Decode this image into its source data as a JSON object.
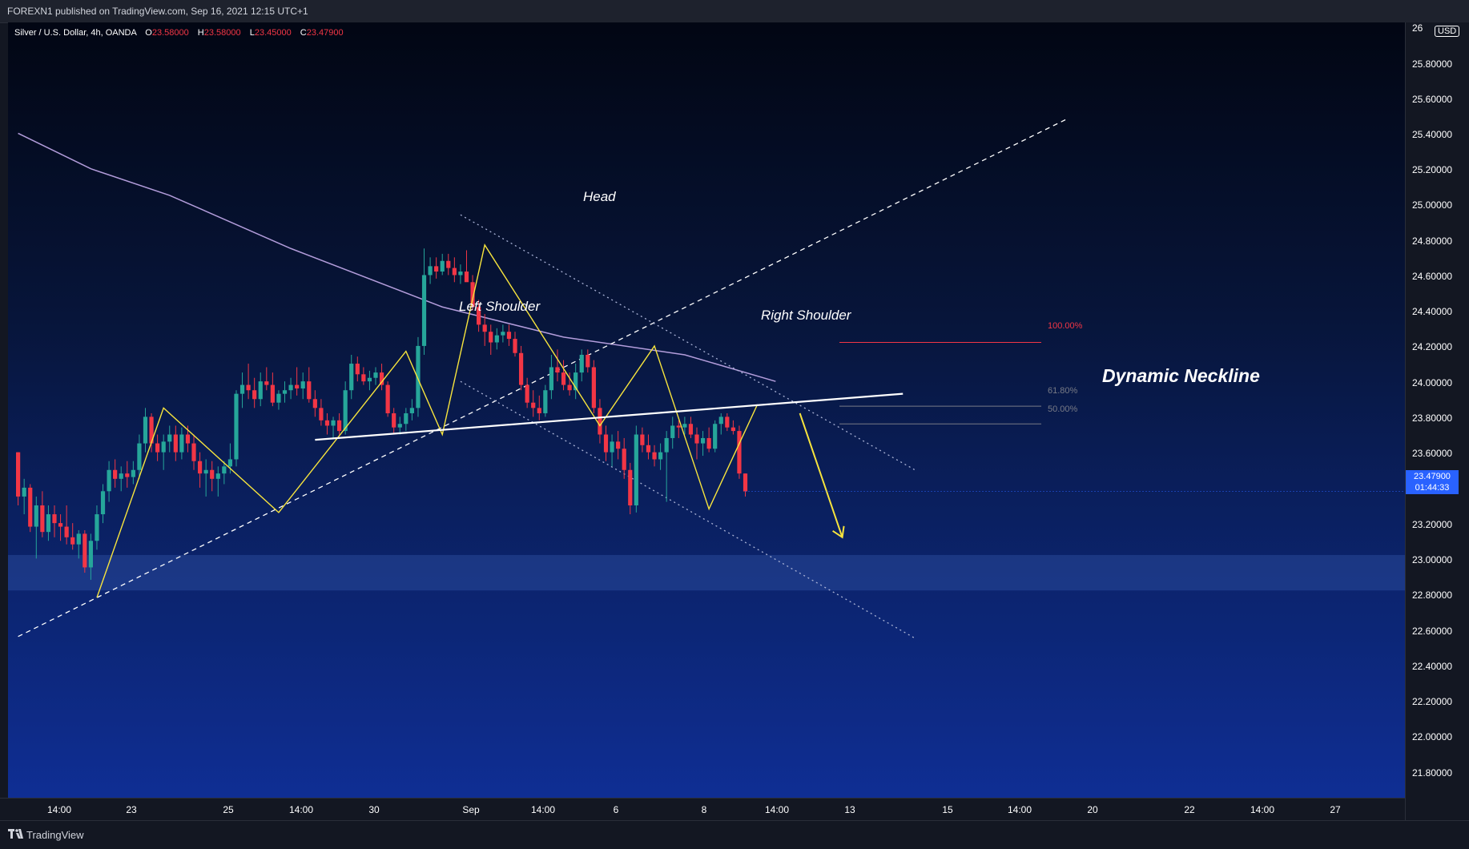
{
  "header": {
    "publisher": "FOREXN1 published on TradingView.com, Sep 16, 2021 12:15 UTC+1"
  },
  "legend": {
    "symbol": "Silver / U.S. Dollar, 4h, OANDA",
    "open_label": "O",
    "open": "23.58000",
    "high_label": "H",
    "high": "23.58000",
    "low_label": "L",
    "low": "23.45000",
    "close_label": "C",
    "close": "23.47900"
  },
  "price_axis": {
    "currency": "USD",
    "top_partial": "26",
    "ticks": [
      "25.80000",
      "25.60000",
      "25.40000",
      "25.20000",
      "25.00000",
      "24.80000",
      "24.60000",
      "24.40000",
      "24.20000",
      "24.00000",
      "23.80000",
      "23.60000",
      "23.20000",
      "23.00000",
      "22.80000",
      "22.60000",
      "22.40000",
      "22.20000",
      "22.00000",
      "21.80000"
    ],
    "last_price": "23.47900",
    "countdown": "01:44:33"
  },
  "time_axis": {
    "ticks": [
      "14:00",
      "23",
      "25",
      "14:00",
      "30",
      "Sep",
      "14:00",
      "6",
      "8",
      "14:00",
      "13",
      "15",
      "14:00",
      "20",
      "22",
      "14:00",
      "27"
    ]
  },
  "annotations": {
    "head": "Head",
    "left_shoulder": "Left Shoulder",
    "right_shoulder": "Right Shoulder",
    "neckline": "Dynamic Neckline"
  },
  "fibonacci": [
    {
      "label": "100.00%",
      "price": 24.32,
      "color": "#f23645"
    },
    {
      "label": "61.80%",
      "price": 23.96,
      "color": "#787b86"
    },
    {
      "label": "50.00%",
      "price": 23.86,
      "color": "#787b86"
    }
  ],
  "support_zone": {
    "from": 22.92,
    "to": 23.12
  },
  "footer": {
    "brand": "TradingView"
  },
  "colors": {
    "bull": "#26a69a",
    "bear": "#f23645",
    "moving_average": "#b39ddb",
    "zigzag": "#f7e43d",
    "neckline": "#ffffff",
    "badge": "#2962ff"
  },
  "chart_data": {
    "type": "candlestick",
    "symbol": "Silver / U.S. Dollar",
    "interval": "4h",
    "ylim": [
      21.7,
      26.0
    ],
    "candles": [
      [
        23.7,
        23.7,
        23.4,
        23.45
      ],
      [
        23.45,
        23.55,
        23.35,
        23.5
      ],
      [
        23.5,
        23.52,
        23.25,
        23.28
      ],
      [
        23.28,
        23.45,
        23.1,
        23.4
      ],
      [
        23.4,
        23.48,
        23.22,
        23.25
      ],
      [
        23.25,
        23.4,
        23.2,
        23.35
      ],
      [
        23.35,
        23.4,
        23.22,
        23.3
      ],
      [
        23.3,
        23.35,
        23.2,
        23.28
      ],
      [
        23.28,
        23.4,
        23.18,
        23.22
      ],
      [
        23.22,
        23.3,
        23.15,
        23.18
      ],
      [
        23.18,
        23.26,
        23.1,
        23.24
      ],
      [
        23.24,
        23.26,
        23.02,
        23.05
      ],
      [
        23.05,
        23.24,
        22.98,
        23.2
      ],
      [
        23.2,
        23.4,
        23.15,
        23.35
      ],
      [
        23.35,
        23.52,
        23.3,
        23.48
      ],
      [
        23.48,
        23.65,
        23.42,
        23.6
      ],
      [
        23.6,
        23.66,
        23.5,
        23.55
      ],
      [
        23.55,
        23.62,
        23.48,
        23.58
      ],
      [
        23.58,
        23.65,
        23.5,
        23.56
      ],
      [
        23.56,
        23.65,
        23.52,
        23.6
      ],
      [
        23.6,
        23.8,
        23.55,
        23.75
      ],
      [
        23.75,
        23.95,
        23.7,
        23.9
      ],
      [
        23.9,
        23.92,
        23.7,
        23.75
      ],
      [
        23.75,
        23.8,
        23.65,
        23.7
      ],
      [
        23.7,
        23.8,
        23.6,
        23.76
      ],
      [
        23.76,
        23.85,
        23.7,
        23.8
      ],
      [
        23.8,
        23.85,
        23.65,
        23.7
      ],
      [
        23.7,
        23.84,
        23.66,
        23.8
      ],
      [
        23.8,
        23.85,
        23.7,
        23.75
      ],
      [
        23.75,
        23.8,
        23.6,
        23.65
      ],
      [
        23.65,
        23.7,
        23.5,
        23.58
      ],
      [
        23.58,
        23.66,
        23.45,
        23.6
      ],
      [
        23.6,
        23.65,
        23.48,
        23.55
      ],
      [
        23.55,
        23.62,
        23.45,
        23.58
      ],
      [
        23.58,
        23.65,
        23.52,
        23.62
      ],
      [
        23.62,
        23.75,
        23.58,
        23.66
      ],
      [
        23.66,
        24.05,
        23.62,
        24.03
      ],
      [
        24.03,
        24.15,
        23.95,
        24.08
      ],
      [
        24.08,
        24.2,
        24.0,
        24.05
      ],
      [
        24.05,
        24.12,
        23.95,
        24.0
      ],
      [
        24.0,
        24.15,
        23.96,
        24.1
      ],
      [
        24.1,
        24.18,
        24.05,
        24.08
      ],
      [
        24.08,
        24.15,
        23.96,
        23.98
      ],
      [
        23.98,
        24.05,
        23.94,
        24.03
      ],
      [
        24.03,
        24.1,
        23.98,
        24.05
      ],
      [
        24.05,
        24.12,
        24.0,
        24.08
      ],
      [
        24.08,
        24.18,
        24.02,
        24.06
      ],
      [
        24.06,
        24.15,
        24.0,
        24.1
      ],
      [
        24.1,
        24.18,
        23.98,
        24.0
      ],
      [
        24.0,
        24.05,
        23.9,
        23.95
      ],
      [
        23.95,
        24.0,
        23.85,
        23.88
      ],
      [
        23.88,
        23.92,
        23.8,
        23.85
      ],
      [
        23.85,
        23.9,
        23.78,
        23.88
      ],
      [
        23.88,
        23.92,
        23.8,
        23.82
      ],
      [
        23.82,
        24.1,
        23.8,
        24.05
      ],
      [
        24.05,
        24.25,
        24.0,
        24.2
      ],
      [
        24.2,
        24.24,
        24.1,
        24.14
      ],
      [
        24.14,
        24.18,
        24.08,
        24.1
      ],
      [
        24.1,
        24.16,
        24.05,
        24.12
      ],
      [
        24.12,
        24.18,
        24.08,
        24.15
      ],
      [
        24.15,
        24.2,
        24.05,
        24.08
      ],
      [
        24.08,
        24.1,
        23.9,
        23.92
      ],
      [
        23.92,
        23.95,
        23.8,
        23.84
      ],
      [
        23.84,
        23.9,
        23.8,
        23.86
      ],
      [
        23.86,
        23.95,
        23.82,
        23.92
      ],
      [
        23.92,
        24.0,
        23.88,
        23.95
      ],
      [
        23.95,
        24.35,
        23.9,
        24.3
      ],
      [
        24.3,
        24.85,
        24.25,
        24.7
      ],
      [
        24.7,
        24.8,
        24.65,
        24.75
      ],
      [
        24.75,
        24.8,
        24.68,
        24.72
      ],
      [
        24.72,
        24.82,
        24.7,
        24.78
      ],
      [
        24.78,
        24.82,
        24.7,
        24.74
      ],
      [
        24.74,
        24.8,
        24.66,
        24.7
      ],
      [
        24.7,
        24.76,
        24.65,
        24.72
      ],
      [
        24.72,
        24.84,
        24.68,
        24.66
      ],
      [
        24.66,
        24.7,
        24.5,
        24.52
      ],
      [
        24.52,
        24.56,
        24.38,
        24.42
      ],
      [
        24.42,
        24.48,
        24.3,
        24.38
      ],
      [
        24.38,
        24.42,
        24.25,
        24.32
      ],
      [
        24.32,
        24.4,
        24.28,
        24.36
      ],
      [
        24.36,
        24.42,
        24.32,
        24.38
      ],
      [
        24.38,
        24.42,
        24.3,
        24.34
      ],
      [
        24.34,
        24.38,
        24.24,
        24.26
      ],
      [
        24.26,
        24.3,
        24.05,
        24.08
      ],
      [
        24.08,
        24.12,
        23.95,
        23.98
      ],
      [
        23.98,
        24.05,
        23.9,
        23.95
      ],
      [
        23.95,
        24.02,
        23.88,
        23.92
      ],
      [
        23.92,
        24.08,
        23.9,
        24.05
      ],
      [
        24.05,
        24.25,
        24.0,
        24.18
      ],
      [
        24.18,
        24.28,
        24.1,
        24.15
      ],
      [
        24.15,
        24.22,
        24.05,
        24.08
      ],
      [
        24.08,
        24.15,
        24.02,
        24.05
      ],
      [
        24.05,
        24.2,
        24.0,
        24.15
      ],
      [
        24.15,
        24.28,
        24.1,
        24.25
      ],
      [
        24.25,
        24.28,
        24.15,
        24.18
      ],
      [
        24.18,
        24.22,
        23.92,
        23.95
      ],
      [
        23.95,
        24.0,
        23.75,
        23.8
      ],
      [
        23.8,
        23.85,
        23.65,
        23.7
      ],
      [
        23.7,
        23.8,
        23.62,
        23.76
      ],
      [
        23.76,
        23.82,
        23.66,
        23.72
      ],
      [
        23.72,
        23.78,
        23.55,
        23.6
      ],
      [
        23.6,
        23.64,
        23.35,
        23.4
      ],
      [
        23.4,
        23.85,
        23.36,
        23.8
      ],
      [
        23.8,
        23.84,
        23.7,
        23.74
      ],
      [
        23.74,
        23.8,
        23.66,
        23.7
      ],
      [
        23.7,
        23.74,
        23.62,
        23.66
      ],
      [
        23.66,
        23.75,
        23.6,
        23.7
      ],
      [
        23.7,
        23.82,
        23.42,
        23.78
      ],
      [
        23.78,
        23.9,
        23.72,
        23.85
      ],
      [
        23.85,
        23.88,
        23.78,
        23.84
      ],
      [
        23.84,
        23.9,
        23.8,
        23.86
      ],
      [
        23.86,
        23.9,
        23.78,
        23.8
      ],
      [
        23.8,
        23.84,
        23.66,
        23.75
      ],
      [
        23.75,
        23.82,
        23.68,
        23.78
      ],
      [
        23.78,
        23.84,
        23.7,
        23.72
      ],
      [
        23.72,
        23.88,
        23.7,
        23.86
      ],
      [
        23.86,
        23.92,
        23.8,
        23.9
      ],
      [
        23.9,
        23.92,
        23.82,
        23.84
      ],
      [
        23.84,
        23.88,
        23.8,
        23.82
      ],
      [
        23.82,
        23.85,
        23.55,
        23.58
      ],
      [
        23.58,
        23.58,
        23.45,
        23.479
      ]
    ],
    "moving_average": [
      [
        0,
        25.5
      ],
      [
        12,
        25.3
      ],
      [
        25,
        25.15
      ],
      [
        45,
        24.85
      ],
      [
        70,
        24.52
      ],
      [
        90,
        24.35
      ],
      [
        110,
        24.25
      ],
      [
        125,
        24.1
      ]
    ],
    "zigzag": [
      [
        13,
        22.88
      ],
      [
        24,
        23.95
      ],
      [
        43,
        23.36
      ],
      [
        64,
        24.27
      ],
      [
        70,
        23.8
      ],
      [
        77,
        24.87
      ],
      [
        96,
        23.85
      ],
      [
        105,
        24.3
      ],
      [
        114,
        23.38
      ],
      [
        122,
        23.97
      ]
    ],
    "projection": {
      "from": [
        129,
        23.92
      ],
      "to": [
        136,
        23.22
      ]
    },
    "neckline": {
      "from": [
        49,
        23.77
      ],
      "to": [
        146,
        24.03
      ]
    },
    "dashed_channel": {
      "from": [
        0,
        22.66
      ],
      "to": [
        173,
        25.58
      ]
    },
    "dotted_channel_upper": {
      "from": [
        73,
        25.04
      ],
      "to": [
        148,
        23.6
      ]
    },
    "dotted_channel_lower": {
      "from": [
        73,
        24.1
      ],
      "to": [
        148,
        22.65
      ]
    }
  }
}
